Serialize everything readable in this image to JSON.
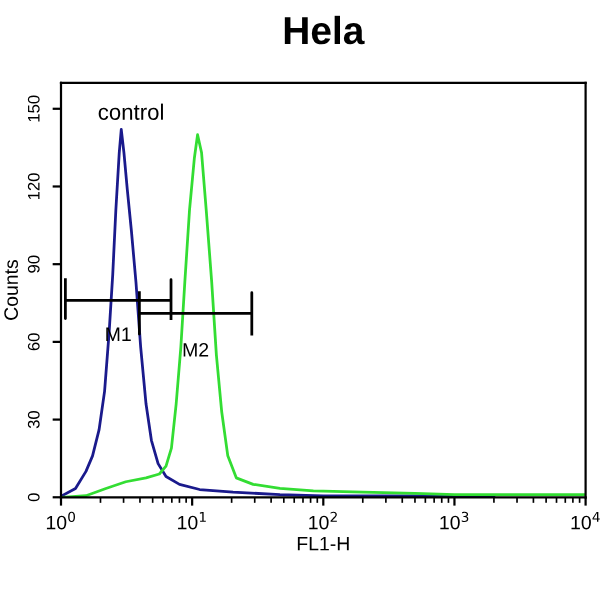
{
  "chart_data": {
    "type": "line",
    "title": "Hela",
    "xlabel": "FL1-H",
    "ylabel": "Counts",
    "log": "x",
    "xlim": [
      1,
      10000
    ],
    "xticks": [
      {
        "value": 1,
        "label": "10$^{0}$"
      },
      {
        "value": 10,
        "label": "10$^{1}$"
      },
      {
        "value": 100,
        "label": "10$^{2}$"
      },
      {
        "value": 1000,
        "label": "10$^{3}$"
      },
      {
        "value": 10000,
        "label": "10$^{4}$"
      }
    ],
    "ylim": [
      0,
      160
    ],
    "yticks": [
      0,
      30,
      60,
      90,
      120,
      150
    ],
    "grid": false,
    "marker": "none",
    "line_style": "solid",
    "series": [
      {
        "color": "#1a1a8c",
        "x": [
          1.02,
          1.29,
          1.55,
          1.74,
          1.95,
          2.15,
          2.33,
          2.48,
          2.62,
          2.78,
          2.88,
          3.02,
          3.2,
          3.44,
          3.73,
          4.05,
          4.45,
          4.89,
          5.5,
          6.32,
          8.01,
          11.4,
          20.5,
          46.7,
          100,
          300,
          1000,
          2000
        ],
        "values": [
          0.6,
          3.4,
          10,
          16,
          26,
          41,
          64,
          86,
          111,
          133,
          142,
          133,
          119,
          103,
          83,
          58,
          36,
          22,
          13,
          8,
          5,
          3,
          2,
          1,
          0.5,
          0.5,
          0.5,
          0.5
        ]
      },
      {
        "color": "#33dd33",
        "x": [
          1.02,
          1.55,
          2.2,
          3.12,
          4.45,
          5.62,
          6.32,
          6.95,
          7.55,
          8.2,
          8.79,
          9.55,
          10.4,
          11.0,
          11.8,
          12.8,
          14.1,
          15.3,
          16.8,
          18.7,
          21.7,
          29.2,
          46.7,
          84,
          200,
          500,
          1000,
          3000,
          10000
        ],
        "values": [
          0,
          0.6,
          3.4,
          6,
          7.5,
          9,
          12,
          19,
          36,
          58,
          83,
          111,
          131,
          140,
          133,
          111,
          83,
          55,
          33,
          16,
          7.5,
          5,
          3.4,
          2.5,
          2,
          1.5,
          1,
          1,
          1
        ]
      },
      {
        "color": "#000000",
        "x": [
          1.08,
          1.08,
          1.08,
          6.9,
          6.9,
          6.9
        ],
        "values": [
          84,
          69,
          76,
          76,
          84,
          69
        ]
      },
      {
        "color": "#000000",
        "x": [
          3.96,
          3.96,
          3.96,
          28.5,
          28.5,
          28.5
        ],
        "values": [
          79,
          63,
          71,
          71,
          79,
          63
        ]
      }
    ],
    "annotations": [
      "control",
      "M1",
      "M2"
    ]
  }
}
